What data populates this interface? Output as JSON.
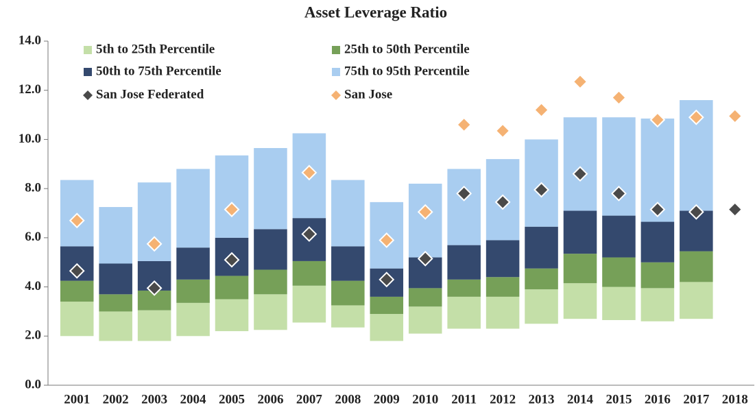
{
  "chart_data": {
    "type": "floating-stacked-bar",
    "title": "Asset Leverage Ratio",
    "categories": [
      "2001",
      "2002",
      "2003",
      "2004",
      "2005",
      "2006",
      "2007",
      "2008",
      "2009",
      "2010",
      "2011",
      "2012",
      "2013",
      "2014",
      "2015",
      "2016",
      "2017",
      "2018"
    ],
    "base": [
      2.0,
      1.8,
      1.8,
      2.0,
      2.2,
      2.25,
      2.55,
      2.35,
      1.8,
      2.1,
      2.3,
      2.3,
      2.5,
      2.7,
      2.65,
      2.6,
      2.7,
      null
    ],
    "series": [
      {
        "name": "5th to 25th Percentile",
        "color": "#c4dfa8",
        "values": [
          1.4,
          1.2,
          1.25,
          1.35,
          1.3,
          1.45,
          1.5,
          0.9,
          1.1,
          1.1,
          1.3,
          1.3,
          1.4,
          1.45,
          1.35,
          1.35,
          1.5,
          null
        ]
      },
      {
        "name": "25th to 50th Percentile",
        "color": "#76a058",
        "values": [
          0.85,
          0.7,
          0.8,
          0.95,
          0.95,
          1.0,
          1.0,
          1.0,
          0.7,
          0.75,
          0.7,
          0.8,
          0.85,
          1.2,
          1.2,
          1.05,
          1.25,
          null
        ]
      },
      {
        "name": "50th to 75th Percentile",
        "color": "#34496e",
        "values": [
          1.4,
          1.25,
          1.2,
          1.3,
          1.55,
          1.65,
          1.75,
          1.4,
          1.15,
          1.25,
          1.4,
          1.5,
          1.7,
          1.75,
          1.7,
          1.65,
          1.65,
          null
        ]
      },
      {
        "name": "75th to 95th Percentile",
        "color": "#a9cdf0",
        "values": [
          2.7,
          2.3,
          3.2,
          3.2,
          3.35,
          3.3,
          3.45,
          2.7,
          2.7,
          3.0,
          3.1,
          3.3,
          3.55,
          3.8,
          4.0,
          4.2,
          4.5,
          null
        ]
      }
    ],
    "markers": [
      {
        "name": "San Jose Federated",
        "color": "#4a4a4a",
        "values": [
          4.65,
          null,
          3.95,
          null,
          5.1,
          null,
          6.15,
          null,
          4.3,
          5.15,
          7.8,
          7.45,
          7.95,
          8.6,
          7.8,
          7.15,
          7.05,
          7.15
        ]
      },
      {
        "name": "San Jose",
        "color": "#f5b273",
        "values": [
          6.7,
          null,
          5.75,
          null,
          7.15,
          null,
          8.65,
          null,
          5.9,
          7.05,
          10.6,
          10.35,
          11.2,
          12.35,
          11.7,
          10.8,
          10.9,
          10.95
        ]
      }
    ],
    "ylim": [
      0,
      14
    ],
    "yticks": [
      {
        "value": 0,
        "label": "0.0"
      },
      {
        "value": 2,
        "label": "2.0"
      },
      {
        "value": 4,
        "label": "4.0"
      },
      {
        "value": 6,
        "label": "6.0"
      },
      {
        "value": 8,
        "label": "8.0"
      },
      {
        "value": 10,
        "label": "10.0"
      },
      {
        "value": 12,
        "label": "12.0"
      },
      {
        "value": 14,
        "label": "14.0"
      }
    ],
    "grid": false
  }
}
